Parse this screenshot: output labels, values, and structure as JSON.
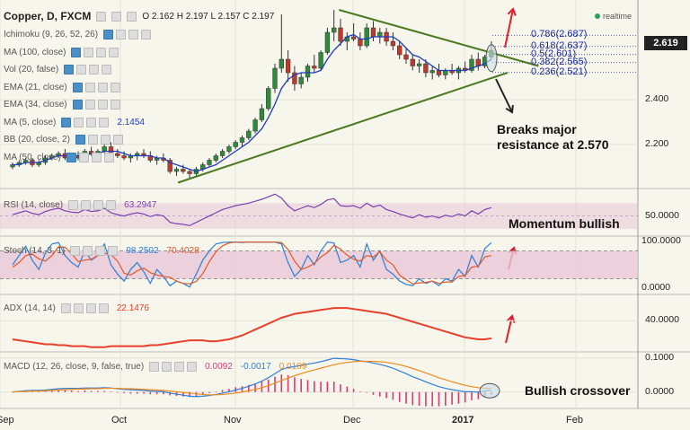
{
  "header": {
    "symbol": "Copper, D, FXCM",
    "ohlc": "O 2.162  H 2.197  L 2.157  C 2.197",
    "realtime": "realtime",
    "last_price": "2.619"
  },
  "indicators": [
    {
      "label": "Ichimoku (9, 26, 52, 26)",
      "value": ""
    },
    {
      "label": "MA (100, close)",
      "value": ""
    },
    {
      "label": "Vol (20, false)",
      "value": ""
    },
    {
      "label": "EMA (21, close)",
      "value": ""
    },
    {
      "label": "EMA (34, close)",
      "value": ""
    },
    {
      "label": "MA (5, close)",
      "value": "2.1454"
    },
    {
      "label": "BB (20, close, 2)",
      "value": ""
    },
    {
      "label": "MA (50, close)",
      "value": ""
    }
  ],
  "fib_levels": [
    {
      "label": "0.786(2.687)",
      "price": 2.687
    },
    {
      "label": "0.618(2.637)",
      "price": 2.637
    },
    {
      "label": "0.5(2.601)",
      "price": 2.601
    },
    {
      "label": "0.382(2.565)",
      "price": 2.565
    },
    {
      "label": "0.236(2.521)",
      "price": 2.521
    }
  ],
  "annotations": {
    "breakout": "Breaks major\nresistance at 2.570",
    "momentum": "Momentum bullish",
    "crossover": "Bullish crossover"
  },
  "panes": {
    "rsi": {
      "label": "RSI (14, close)",
      "value": "63.2947",
      "ticks": [
        "50.0000"
      ]
    },
    "stoch": {
      "label": "Stoch (14, 3, 1)",
      "value_k": "98.2502",
      "value_d": "70.4028",
      "ticks": [
        "100.0000",
        "0.0000"
      ]
    },
    "adx": {
      "label": "ADX (14, 14)",
      "value": "22.1476",
      "ticks": [
        "40.0000"
      ]
    },
    "macd": {
      "label": "MACD (12, 26, close, 9, false, true)",
      "value_hist": "0.0092",
      "value_macd": "-0.0017",
      "value_signal": "0.0109",
      "ticks": [
        "0.1000",
        "0.0000"
      ]
    }
  },
  "colors": {
    "up": "#2e8b3a",
    "down": "#c0392b",
    "ma5": "#1f3bbf",
    "trend": "#4a7a1e",
    "rsi": "#7b3fb0",
    "stoch_k": "#2d7fd8",
    "stoch_d": "#e05a2a",
    "adx": "#e8402a",
    "macd": "#2d7fd8",
    "signal": "#f08a1a",
    "hist": "#d63a7a",
    "band": "#e8c7d8",
    "arrow": "#e0202a"
  },
  "chart_data": [
    {
      "type": "candlestick",
      "title": "Copper, D, FXCM",
      "x_labels": [
        "Sep",
        "Oct",
        "Nov",
        "Dec",
        "2017",
        "Feb"
      ],
      "y_ticks": [
        2.2,
        2.4
      ],
      "y_range": [
        2.02,
        2.82
      ],
      "candles": [
        [
          2.1,
          2.12,
          2.09,
          2.11
        ],
        [
          2.11,
          2.13,
          2.1,
          2.12
        ],
        [
          2.12,
          2.14,
          2.11,
          2.13
        ],
        [
          2.13,
          2.14,
          2.1,
          2.11
        ],
        [
          2.11,
          2.13,
          2.1,
          2.12
        ],
        [
          2.12,
          2.15,
          2.11,
          2.14
        ],
        [
          2.14,
          2.16,
          2.13,
          2.15
        ],
        [
          2.15,
          2.17,
          2.14,
          2.16
        ],
        [
          2.16,
          2.18,
          2.13,
          2.14
        ],
        [
          2.14,
          2.16,
          2.12,
          2.15
        ],
        [
          2.15,
          2.17,
          2.13,
          2.14
        ],
        [
          2.14,
          2.18,
          2.13,
          2.17
        ],
        [
          2.17,
          2.19,
          2.15,
          2.16
        ],
        [
          2.16,
          2.18,
          2.14,
          2.17
        ],
        [
          2.17,
          2.2,
          2.16,
          2.19
        ],
        [
          2.19,
          2.21,
          2.15,
          2.16
        ],
        [
          2.16,
          2.18,
          2.14,
          2.15
        ],
        [
          2.15,
          2.17,
          2.13,
          2.14
        ],
        [
          2.14,
          2.16,
          2.12,
          2.15
        ],
        [
          2.15,
          2.17,
          2.13,
          2.16
        ],
        [
          2.16,
          2.18,
          2.14,
          2.15
        ],
        [
          2.15,
          2.17,
          2.12,
          2.13
        ],
        [
          2.13,
          2.15,
          2.11,
          2.14
        ],
        [
          2.14,
          2.16,
          2.12,
          2.13
        ],
        [
          2.13,
          2.14,
          2.07,
          2.08
        ],
        [
          2.08,
          2.1,
          2.06,
          2.09
        ],
        [
          2.09,
          2.11,
          2.07,
          2.08
        ],
        [
          2.08,
          2.09,
          2.05,
          2.07
        ],
        [
          2.07,
          2.1,
          2.06,
          2.09
        ],
        [
          2.09,
          2.12,
          2.08,
          2.11
        ],
        [
          2.11,
          2.14,
          2.1,
          2.13
        ],
        [
          2.13,
          2.16,
          2.12,
          2.15
        ],
        [
          2.15,
          2.18,
          2.14,
          2.17
        ],
        [
          2.17,
          2.2,
          2.16,
          2.19
        ],
        [
          2.19,
          2.22,
          2.18,
          2.21
        ],
        [
          2.21,
          2.24,
          2.19,
          2.23
        ],
        [
          2.23,
          2.27,
          2.22,
          2.26
        ],
        [
          2.26,
          2.32,
          2.25,
          2.31
        ],
        [
          2.31,
          2.38,
          2.3,
          2.36
        ],
        [
          2.36,
          2.46,
          2.35,
          2.45
        ],
        [
          2.45,
          2.56,
          2.43,
          2.54
        ],
        [
          2.54,
          2.78,
          2.52,
          2.58
        ],
        [
          2.58,
          2.62,
          2.48,
          2.52
        ],
        [
          2.52,
          2.55,
          2.44,
          2.47
        ],
        [
          2.47,
          2.52,
          2.45,
          2.5
        ],
        [
          2.5,
          2.56,
          2.48,
          2.55
        ],
        [
          2.55,
          2.6,
          2.52,
          2.54
        ],
        [
          2.54,
          2.62,
          2.53,
          2.61
        ],
        [
          2.61,
          2.72,
          2.6,
          2.7
        ],
        [
          2.7,
          2.8,
          2.66,
          2.72
        ],
        [
          2.72,
          2.76,
          2.64,
          2.66
        ],
        [
          2.66,
          2.7,
          2.62,
          2.68
        ],
        [
          2.68,
          2.74,
          2.66,
          2.67
        ],
        [
          2.67,
          2.7,
          2.62,
          2.64
        ],
        [
          2.64,
          2.74,
          2.63,
          2.72
        ],
        [
          2.72,
          2.75,
          2.66,
          2.68
        ],
        [
          2.68,
          2.72,
          2.65,
          2.7
        ],
        [
          2.7,
          2.72,
          2.64,
          2.66
        ],
        [
          2.66,
          2.7,
          2.62,
          2.64
        ],
        [
          2.64,
          2.66,
          2.58,
          2.6
        ],
        [
          2.6,
          2.63,
          2.56,
          2.58
        ],
        [
          2.58,
          2.6,
          2.53,
          2.55
        ],
        [
          2.55,
          2.58,
          2.52,
          2.56
        ],
        [
          2.56,
          2.58,
          2.5,
          2.52
        ],
        [
          2.52,
          2.55,
          2.49,
          2.53
        ],
        [
          2.53,
          2.56,
          2.5,
          2.51
        ],
        [
          2.51,
          2.54,
          2.49,
          2.53
        ],
        [
          2.53,
          2.56,
          2.51,
          2.52
        ],
        [
          2.52,
          2.55,
          2.49,
          2.54
        ],
        [
          2.54,
          2.57,
          2.52,
          2.53
        ],
        [
          2.53,
          2.6,
          2.52,
          2.58
        ],
        [
          2.58,
          2.61,
          2.53,
          2.55
        ],
        [
          2.55,
          2.6,
          2.54,
          2.59
        ],
        [
          2.59,
          2.66,
          2.58,
          2.62
        ]
      ],
      "ma5": [
        2.11,
        2.11,
        2.12,
        2.12,
        2.12,
        2.13,
        2.14,
        2.15,
        2.15,
        2.15,
        2.15,
        2.15,
        2.16,
        2.16,
        2.17,
        2.17,
        2.17,
        2.16,
        2.15,
        2.15,
        2.15,
        2.15,
        2.14,
        2.14,
        2.12,
        2.11,
        2.1,
        2.09,
        2.08,
        2.09,
        2.1,
        2.11,
        2.13,
        2.15,
        2.17,
        2.19,
        2.21,
        2.24,
        2.27,
        2.32,
        2.38,
        2.45,
        2.49,
        2.51,
        2.52,
        2.52,
        2.52,
        2.53,
        2.58,
        2.62,
        2.65,
        2.68,
        2.69,
        2.67,
        2.67,
        2.68,
        2.68,
        2.68,
        2.68,
        2.66,
        2.63,
        2.6,
        2.59,
        2.57,
        2.55,
        2.53,
        2.53,
        2.53,
        2.53,
        2.53,
        2.54,
        2.55,
        2.56,
        2.58
      ],
      "trend_support": [
        [
          2.03,
          0
        ],
        [
          2.52,
          73
        ]
      ],
      "trend_resistance": [
        [
          2.8,
          41
        ],
        [
          2.55,
          78
        ]
      ],
      "fib_levels": [
        2.687,
        2.637,
        2.601,
        2.565,
        2.521
      ],
      "last_price": 2.619
    },
    {
      "type": "line",
      "name": "RSI (14, close)",
      "y_range": [
        20,
        90
      ],
      "y_ticks": [
        50
      ],
      "band": [
        30,
        70
      ],
      "values": [
        52,
        55,
        58,
        54,
        52,
        57,
        60,
        62,
        58,
        56,
        55,
        60,
        57,
        58,
        62,
        55,
        52,
        50,
        53,
        55,
        53,
        49,
        52,
        50,
        40,
        38,
        37,
        35,
        40,
        45,
        50,
        55,
        60,
        63,
        66,
        68,
        70,
        73,
        76,
        80,
        84,
        78,
        66,
        58,
        62,
        66,
        63,
        68,
        75,
        77,
        66,
        65,
        66,
        62,
        70,
        64,
        67,
        60,
        57,
        53,
        50,
        47,
        52,
        48,
        50,
        47,
        51,
        49,
        53,
        50,
        58,
        53,
        60,
        63
      ]
    },
    {
      "type": "line",
      "name": "Stoch (14, 3, 1)",
      "y_range": [
        -10,
        110
      ],
      "y_ticks": [
        100,
        0
      ],
      "band": [
        20,
        80
      ],
      "k": [
        50,
        70,
        90,
        60,
        40,
        75,
        95,
        98,
        70,
        55,
        45,
        80,
        60,
        70,
        95,
        50,
        30,
        15,
        40,
        55,
        35,
        10,
        40,
        25,
        5,
        15,
        10,
        2,
        30,
        60,
        80,
        95,
        98,
        99,
        99,
        98,
        99,
        99,
        99,
        99,
        99,
        95,
        55,
        25,
        40,
        70,
        50,
        80,
        99,
        97,
        55,
        60,
        70,
        45,
        95,
        60,
        80,
        40,
        30,
        15,
        8,
        5,
        20,
        10,
        15,
        5,
        20,
        15,
        40,
        25,
        70,
        45,
        85,
        98
      ],
      "d": [
        45,
        55,
        70,
        73,
        63,
        58,
        70,
        89,
        88,
        74,
        57,
        60,
        62,
        70,
        75,
        72,
        58,
        32,
        28,
        37,
        43,
        33,
        28,
        25,
        23,
        15,
        10,
        9,
        14,
        31,
        57,
        78,
        91,
        97,
        99,
        99,
        99,
        99,
        99,
        99,
        99,
        98,
        83,
        58,
        40,
        45,
        53,
        67,
        76,
        92,
        84,
        71,
        62,
        58,
        70,
        67,
        78,
        60,
        50,
        28,
        18,
        9,
        11,
        12,
        15,
        10,
        13,
        13,
        25,
        27,
        45,
        47,
        67,
        70
      ]
    },
    {
      "type": "line",
      "name": "ADX (14, 14)",
      "y_range": [
        10,
        65
      ],
      "y_ticks": [
        40
      ],
      "values": [
        21,
        20,
        19,
        18,
        17,
        16,
        16,
        15,
        15,
        14,
        14,
        14,
        13,
        13,
        13,
        14,
        14,
        14,
        14,
        14,
        14,
        15,
        15,
        16,
        17,
        18,
        19,
        20,
        20,
        20,
        19,
        19,
        20,
        21,
        23,
        25,
        28,
        31,
        34,
        37,
        40,
        43,
        45,
        47,
        48,
        49,
        50,
        51,
        52,
        53,
        53,
        53,
        52,
        51,
        50,
        49,
        48,
        47,
        45,
        43,
        41,
        39,
        37,
        35,
        33,
        31,
        29,
        27,
        25,
        23,
        22,
        21,
        21,
        22
      ]
    },
    {
      "type": "line",
      "name": "MACD (12, 26, close, 9, false, true)",
      "y_range": [
        -0.04,
        0.115
      ],
      "y_ticks": [
        0.1,
        0.0
      ],
      "macd": [
        0.0,
        0.002,
        0.004,
        0.005,
        0.005,
        0.006,
        0.008,
        0.01,
        0.011,
        0.011,
        0.011,
        0.012,
        0.012,
        0.012,
        0.013,
        0.012,
        0.01,
        0.008,
        0.007,
        0.006,
        0.005,
        0.003,
        0.002,
        0.001,
        -0.003,
        -0.006,
        -0.009,
        -0.012,
        -0.013,
        -0.012,
        -0.01,
        -0.007,
        -0.003,
        0.001,
        0.006,
        0.011,
        0.017,
        0.024,
        0.032,
        0.042,
        0.054,
        0.066,
        0.072,
        0.075,
        0.078,
        0.082,
        0.085,
        0.089,
        0.094,
        0.099,
        0.098,
        0.097,
        0.095,
        0.091,
        0.089,
        0.085,
        0.081,
        0.076,
        0.07,
        0.062,
        0.054,
        0.045,
        0.038,
        0.03,
        0.023,
        0.016,
        0.011,
        0.007,
        0.004,
        0.001,
        0.001,
        0.0,
        0.003,
        0.006
      ],
      "signal": [
        0.001,
        0.001,
        0.002,
        0.003,
        0.003,
        0.004,
        0.005,
        0.006,
        0.007,
        0.008,
        0.009,
        0.009,
        0.01,
        0.01,
        0.011,
        0.011,
        0.011,
        0.01,
        0.01,
        0.009,
        0.008,
        0.007,
        0.006,
        0.005,
        0.003,
        0.001,
        -0.001,
        -0.003,
        -0.005,
        -0.007,
        -0.008,
        -0.008,
        -0.007,
        -0.005,
        -0.003,
        0.0,
        0.004,
        0.008,
        0.013,
        0.019,
        0.026,
        0.034,
        0.041,
        0.048,
        0.054,
        0.06,
        0.065,
        0.07,
        0.075,
        0.08,
        0.084,
        0.087,
        0.089,
        0.09,
        0.09,
        0.09,
        0.089,
        0.087,
        0.084,
        0.08,
        0.075,
        0.069,
        0.063,
        0.056,
        0.049,
        0.042,
        0.036,
        0.03,
        0.025,
        0.02,
        0.016,
        0.013,
        0.011,
        0.011
      ]
    }
  ]
}
